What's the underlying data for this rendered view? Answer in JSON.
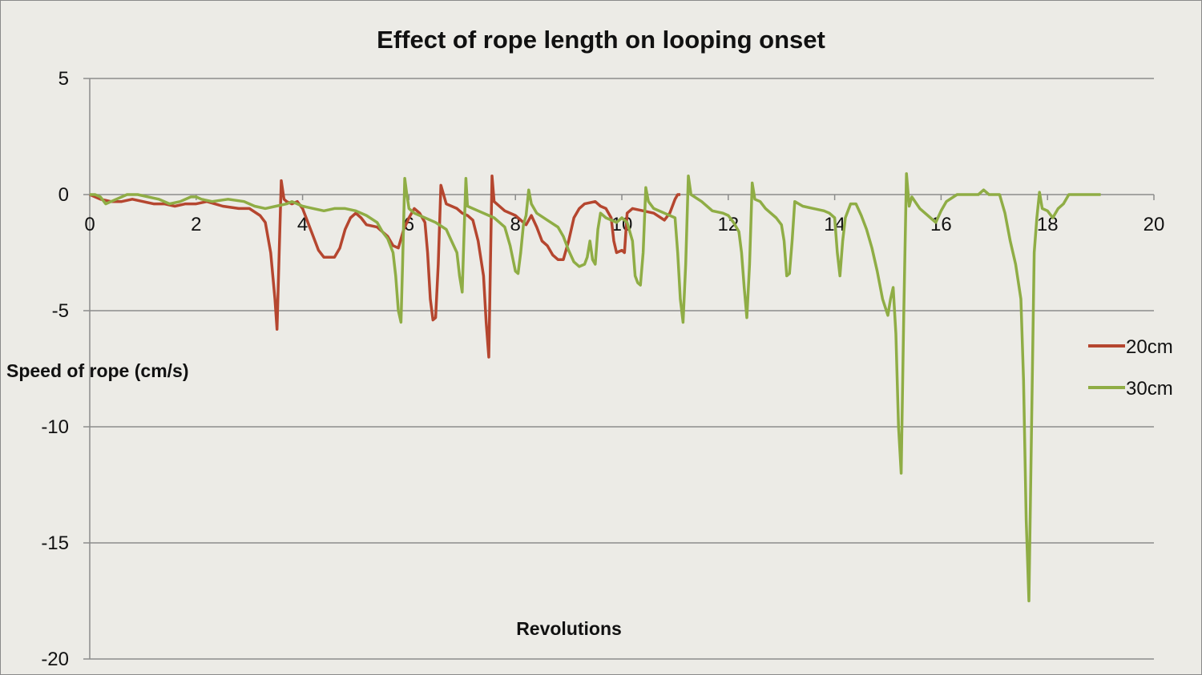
{
  "chart_data": {
    "type": "line",
    "title": "Effect of rope length on looping onset",
    "xlabel": "Revolutions",
    "ylabel": "Speed of rope (cm/s)",
    "xlim": [
      0,
      20
    ],
    "ylim": [
      -20,
      5
    ],
    "x_ticks": [
      0,
      2,
      4,
      6,
      8,
      10,
      12,
      14,
      16,
      18,
      20
    ],
    "y_ticks": [
      5,
      0,
      -5,
      -10,
      -15,
      -20
    ],
    "grid": "horizontal",
    "legend": "right",
    "series": [
      {
        "name": "20cm",
        "color": "#b5462f",
        "points": [
          [
            0,
            0
          ],
          [
            0.2,
            -0.2
          ],
          [
            0.4,
            -0.3
          ],
          [
            0.6,
            -0.3
          ],
          [
            0.8,
            -0.2
          ],
          [
            1.0,
            -0.3
          ],
          [
            1.2,
            -0.4
          ],
          [
            1.4,
            -0.4
          ],
          [
            1.6,
            -0.5
          ],
          [
            1.8,
            -0.4
          ],
          [
            2.0,
            -0.4
          ],
          [
            2.2,
            -0.3
          ],
          [
            2.5,
            -0.5
          ],
          [
            2.8,
            -0.6
          ],
          [
            3.0,
            -0.6
          ],
          [
            3.2,
            -0.9
          ],
          [
            3.3,
            -1.2
          ],
          [
            3.4,
            -2.5
          ],
          [
            3.48,
            -4.5
          ],
          [
            3.52,
            -5.8
          ],
          [
            3.56,
            -2.5
          ],
          [
            3.6,
            0.6
          ],
          [
            3.65,
            -0.2
          ],
          [
            3.7,
            -0.3
          ],
          [
            3.8,
            -0.4
          ],
          [
            3.9,
            -0.3
          ],
          [
            4.0,
            -0.6
          ],
          [
            4.1,
            -1.2
          ],
          [
            4.2,
            -1.8
          ],
          [
            4.3,
            -2.4
          ],
          [
            4.4,
            -2.7
          ],
          [
            4.6,
            -2.7
          ],
          [
            4.7,
            -2.3
          ],
          [
            4.8,
            -1.5
          ],
          [
            4.9,
            -1.0
          ],
          [
            5.0,
            -0.8
          ],
          [
            5.1,
            -1.0
          ],
          [
            5.2,
            -1.3
          ],
          [
            5.4,
            -1.4
          ],
          [
            5.5,
            -1.6
          ],
          [
            5.6,
            -1.8
          ],
          [
            5.7,
            -2.2
          ],
          [
            5.8,
            -2.3
          ],
          [
            5.9,
            -1.5
          ],
          [
            6.0,
            -1.0
          ],
          [
            6.1,
            -0.6
          ],
          [
            6.2,
            -0.8
          ],
          [
            6.3,
            -1.2
          ],
          [
            6.35,
            -2.5
          ],
          [
            6.4,
            -4.5
          ],
          [
            6.45,
            -5.4
          ],
          [
            6.5,
            -5.3
          ],
          [
            6.55,
            -3.0
          ],
          [
            6.6,
            0.4
          ],
          [
            6.7,
            -0.4
          ],
          [
            6.9,
            -0.6
          ],
          [
            7.0,
            -0.8
          ],
          [
            7.1,
            -0.9
          ],
          [
            7.2,
            -1.1
          ],
          [
            7.3,
            -2.0
          ],
          [
            7.4,
            -3.5
          ],
          [
            7.45,
            -5.5
          ],
          [
            7.5,
            -7.0
          ],
          [
            7.53,
            -3.0
          ],
          [
            7.56,
            0.8
          ],
          [
            7.6,
            -0.3
          ],
          [
            7.8,
            -0.7
          ],
          [
            8.0,
            -0.9
          ],
          [
            8.2,
            -1.3
          ],
          [
            8.3,
            -0.9
          ],
          [
            8.4,
            -1.4
          ],
          [
            8.5,
            -2.0
          ],
          [
            8.6,
            -2.2
          ],
          [
            8.7,
            -2.6
          ],
          [
            8.8,
            -2.8
          ],
          [
            8.9,
            -2.8
          ],
          [
            9.0,
            -2.0
          ],
          [
            9.1,
            -1.0
          ],
          [
            9.2,
            -0.6
          ],
          [
            9.3,
            -0.4
          ],
          [
            9.5,
            -0.3
          ],
          [
            9.6,
            -0.5
          ],
          [
            9.7,
            -0.6
          ],
          [
            9.8,
            -1.0
          ],
          [
            9.85,
            -2.0
          ],
          [
            9.9,
            -2.5
          ],
          [
            10.0,
            -2.4
          ],
          [
            10.05,
            -2.5
          ],
          [
            10.1,
            -0.8
          ],
          [
            10.2,
            -0.6
          ],
          [
            10.4,
            -0.7
          ],
          [
            10.6,
            -0.8
          ],
          [
            10.8,
            -1.1
          ],
          [
            10.9,
            -0.8
          ],
          [
            11.0,
            -0.2
          ],
          [
            11.05,
            0
          ],
          [
            11.1,
            0
          ]
        ]
      },
      {
        "name": "30cm",
        "color": "#8fad45",
        "points": [
          [
            0,
            0
          ],
          [
            0.1,
            0
          ],
          [
            0.2,
            -0.1
          ],
          [
            0.3,
            -0.4
          ],
          [
            0.5,
            -0.2
          ],
          [
            0.7,
            0
          ],
          [
            0.9,
            0
          ],
          [
            1.1,
            -0.1
          ],
          [
            1.3,
            -0.2
          ],
          [
            1.5,
            -0.4
          ],
          [
            1.7,
            -0.3
          ],
          [
            1.9,
            -0.1
          ],
          [
            2.0,
            -0.1
          ],
          [
            2.1,
            -0.2
          ],
          [
            2.3,
            -0.3
          ],
          [
            2.6,
            -0.2
          ],
          [
            2.9,
            -0.3
          ],
          [
            3.1,
            -0.5
          ],
          [
            3.3,
            -0.6
          ],
          [
            3.5,
            -0.5
          ],
          [
            3.7,
            -0.4
          ],
          [
            3.8,
            -0.3
          ],
          [
            3.9,
            -0.4
          ],
          [
            4.0,
            -0.5
          ],
          [
            4.2,
            -0.6
          ],
          [
            4.4,
            -0.7
          ],
          [
            4.6,
            -0.6
          ],
          [
            4.8,
            -0.6
          ],
          [
            5.0,
            -0.7
          ],
          [
            5.2,
            -0.9
          ],
          [
            5.4,
            -1.2
          ],
          [
            5.5,
            -1.6
          ],
          [
            5.6,
            -1.9
          ],
          [
            5.7,
            -2.5
          ],
          [
            5.75,
            -3.5
          ],
          [
            5.8,
            -5.0
          ],
          [
            5.85,
            -5.5
          ],
          [
            5.88,
            -3.0
          ],
          [
            5.92,
            0.7
          ],
          [
            5.96,
            0
          ],
          [
            6.0,
            -0.6
          ],
          [
            6.1,
            -0.8
          ],
          [
            6.3,
            -1.0
          ],
          [
            6.5,
            -1.2
          ],
          [
            6.7,
            -1.5
          ],
          [
            6.8,
            -2.0
          ],
          [
            6.9,
            -2.5
          ],
          [
            6.95,
            -3.5
          ],
          [
            7.0,
            -4.2
          ],
          [
            7.03,
            -2.0
          ],
          [
            7.07,
            0.7
          ],
          [
            7.1,
            -0.5
          ],
          [
            7.3,
            -0.7
          ],
          [
            7.5,
            -0.9
          ],
          [
            7.6,
            -1.0
          ],
          [
            7.7,
            -1.2
          ],
          [
            7.8,
            -1.4
          ],
          [
            7.9,
            -2.2
          ],
          [
            8.0,
            -3.3
          ],
          [
            8.05,
            -3.4
          ],
          [
            8.1,
            -2.5
          ],
          [
            8.15,
            -1.3
          ],
          [
            8.2,
            -0.9
          ],
          [
            8.25,
            0.2
          ],
          [
            8.3,
            -0.4
          ],
          [
            8.4,
            -0.8
          ],
          [
            8.6,
            -1.1
          ],
          [
            8.8,
            -1.4
          ],
          [
            8.9,
            -1.8
          ],
          [
            9.0,
            -2.4
          ],
          [
            9.1,
            -2.9
          ],
          [
            9.2,
            -3.1
          ],
          [
            9.3,
            -3.0
          ],
          [
            9.35,
            -2.7
          ],
          [
            9.4,
            -2.0
          ],
          [
            9.45,
            -2.8
          ],
          [
            9.5,
            -3.0
          ],
          [
            9.55,
            -1.5
          ],
          [
            9.6,
            -0.8
          ],
          [
            9.7,
            -1.0
          ],
          [
            9.9,
            -1.2
          ],
          [
            10.0,
            -1.0
          ],
          [
            10.1,
            -1.2
          ],
          [
            10.2,
            -2.0
          ],
          [
            10.25,
            -3.5
          ],
          [
            10.3,
            -3.8
          ],
          [
            10.35,
            -3.9
          ],
          [
            10.4,
            -2.5
          ],
          [
            10.45,
            0.3
          ],
          [
            10.5,
            -0.3
          ],
          [
            10.6,
            -0.6
          ],
          [
            10.8,
            -0.8
          ],
          [
            11.0,
            -1.0
          ],
          [
            11.05,
            -2.5
          ],
          [
            11.1,
            -4.5
          ],
          [
            11.15,
            -5.5
          ],
          [
            11.2,
            -3.0
          ],
          [
            11.25,
            0.8
          ],
          [
            11.3,
            0
          ],
          [
            11.5,
            -0.3
          ],
          [
            11.7,
            -0.7
          ],
          [
            11.9,
            -0.8
          ],
          [
            12.0,
            -0.9
          ],
          [
            12.1,
            -1.2
          ],
          [
            12.2,
            -1.6
          ],
          [
            12.25,
            -2.5
          ],
          [
            12.3,
            -4.0
          ],
          [
            12.35,
            -5.3
          ],
          [
            12.4,
            -3.0
          ],
          [
            12.45,
            0.5
          ],
          [
            12.5,
            -0.2
          ],
          [
            12.6,
            -0.3
          ],
          [
            12.7,
            -0.6
          ],
          [
            12.8,
            -0.8
          ],
          [
            12.9,
            -1.0
          ],
          [
            13.0,
            -1.3
          ],
          [
            13.05,
            -2.0
          ],
          [
            13.1,
            -3.5
          ],
          [
            13.15,
            -3.4
          ],
          [
            13.2,
            -2.0
          ],
          [
            13.25,
            -0.3
          ],
          [
            13.4,
            -0.5
          ],
          [
            13.6,
            -0.6
          ],
          [
            13.8,
            -0.7
          ],
          [
            13.9,
            -0.8
          ],
          [
            14.0,
            -1.0
          ],
          [
            14.05,
            -2.5
          ],
          [
            14.1,
            -3.5
          ],
          [
            14.15,
            -2.0
          ],
          [
            14.2,
            -1.0
          ],
          [
            14.3,
            -0.4
          ],
          [
            14.4,
            -0.4
          ],
          [
            14.5,
            -0.9
          ],
          [
            14.6,
            -1.5
          ],
          [
            14.7,
            -2.3
          ],
          [
            14.8,
            -3.3
          ],
          [
            14.9,
            -4.5
          ],
          [
            15.0,
            -5.2
          ],
          [
            15.05,
            -4.5
          ],
          [
            15.1,
            -4.0
          ],
          [
            15.15,
            -6.0
          ],
          [
            15.2,
            -10.0
          ],
          [
            15.25,
            -12.0
          ],
          [
            15.3,
            -5.0
          ],
          [
            15.35,
            0.9
          ],
          [
            15.4,
            -0.5
          ],
          [
            15.45,
            -0.1
          ],
          [
            15.6,
            -0.6
          ],
          [
            15.8,
            -1.0
          ],
          [
            15.9,
            -1.2
          ],
          [
            16.0,
            -0.7
          ],
          [
            16.1,
            -0.3
          ],
          [
            16.3,
            0
          ],
          [
            16.5,
            0
          ],
          [
            16.7,
            0
          ],
          [
            16.8,
            0.2
          ],
          [
            16.9,
            0
          ],
          [
            17.0,
            0
          ],
          [
            17.1,
            0
          ],
          [
            17.2,
            -0.8
          ],
          [
            17.3,
            -2.0
          ],
          [
            17.4,
            -3.0
          ],
          [
            17.5,
            -4.5
          ],
          [
            17.55,
            -8.0
          ],
          [
            17.6,
            -14.0
          ],
          [
            17.65,
            -17.5
          ],
          [
            17.7,
            -10.0
          ],
          [
            17.75,
            -2.5
          ],
          [
            17.8,
            -1.0
          ],
          [
            17.85,
            0.1
          ],
          [
            17.9,
            -0.6
          ],
          [
            18.0,
            -0.7
          ],
          [
            18.1,
            -1.0
          ],
          [
            18.2,
            -0.6
          ],
          [
            18.3,
            -0.4
          ],
          [
            18.4,
            0
          ],
          [
            18.6,
            0
          ],
          [
            18.9,
            0
          ],
          [
            19.0,
            0
          ]
        ]
      }
    ]
  }
}
